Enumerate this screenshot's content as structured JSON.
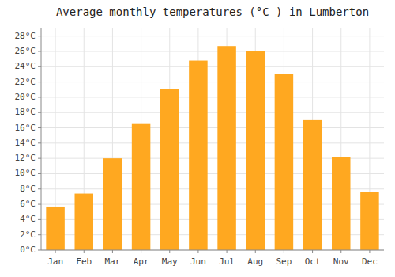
{
  "chart_data": {
    "type": "bar",
    "title": "Average monthly temperatures (°C ) in Lumberton",
    "categories": [
      "Jan",
      "Feb",
      "Mar",
      "Apr",
      "May",
      "Jun",
      "Jul",
      "Aug",
      "Sep",
      "Oct",
      "Nov",
      "Dec"
    ],
    "values": [
      5.7,
      7.4,
      12.0,
      16.5,
      21.1,
      24.8,
      26.7,
      26.1,
      23.0,
      17.1,
      12.2,
      7.6
    ],
    "color": "#FFA820",
    "ylim": [
      0,
      29
    ],
    "yticks": [
      {
        "value": 0,
        "label": "0°C"
      },
      {
        "value": 2,
        "label": "2°C"
      },
      {
        "value": 4,
        "label": "4°C"
      },
      {
        "value": 6,
        "label": "6°C"
      },
      {
        "value": 8,
        "label": "8°C"
      },
      {
        "value": 10,
        "label": "10°C"
      },
      {
        "value": 12,
        "label": "12°C"
      },
      {
        "value": 14,
        "label": "14°C"
      },
      {
        "value": 16,
        "label": "16°C"
      },
      {
        "value": 18,
        "label": "18°C"
      },
      {
        "value": 20,
        "label": "20°C"
      },
      {
        "value": 22,
        "label": "22°C"
      },
      {
        "value": 24,
        "label": "24°C"
      },
      {
        "value": 26,
        "label": "26°C"
      },
      {
        "value": 28,
        "label": "28°C"
      }
    ],
    "grid": true
  }
}
